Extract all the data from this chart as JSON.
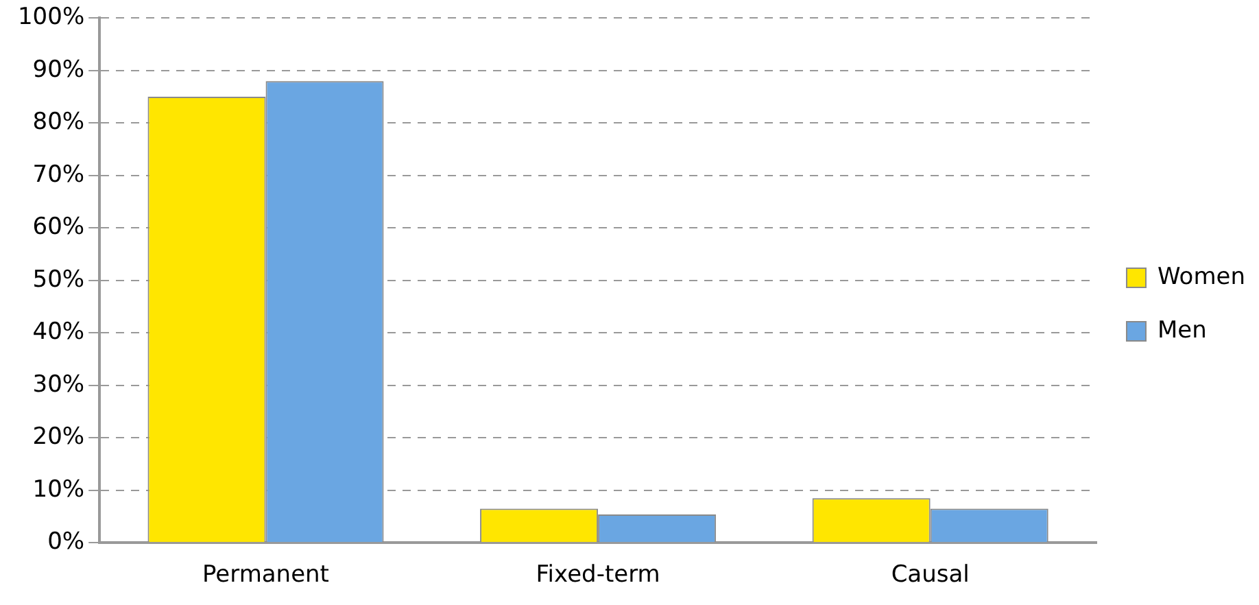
{
  "chart_data": {
    "type": "bar",
    "categories": [
      "Permanent",
      "Fixed-term",
      "Causal"
    ],
    "series": [
      {
        "name": "Women",
        "color": "#ffe600",
        "values": [
          85,
          6.5,
          8.5
        ]
      },
      {
        "name": "Men",
        "color": "#6aa6e2",
        "values": [
          88,
          5.4,
          6.5
        ]
      }
    ],
    "ylim": [
      0,
      100
    ],
    "yticks": [
      {
        "value": 0,
        "label": "0%"
      },
      {
        "value": 10,
        "label": "10%"
      },
      {
        "value": 20,
        "label": "20%"
      },
      {
        "value": 30,
        "label": "30%"
      },
      {
        "value": 40,
        "label": "40%"
      },
      {
        "value": 50,
        "label": "50%"
      },
      {
        "value": 60,
        "label": "60%"
      },
      {
        "value": 70,
        "label": "70%"
      },
      {
        "value": 80,
        "label": "80%"
      },
      {
        "value": 90,
        "label": "90%"
      },
      {
        "value": 100,
        "label": "100%"
      }
    ],
    "grid": "y",
    "legend": "right"
  }
}
